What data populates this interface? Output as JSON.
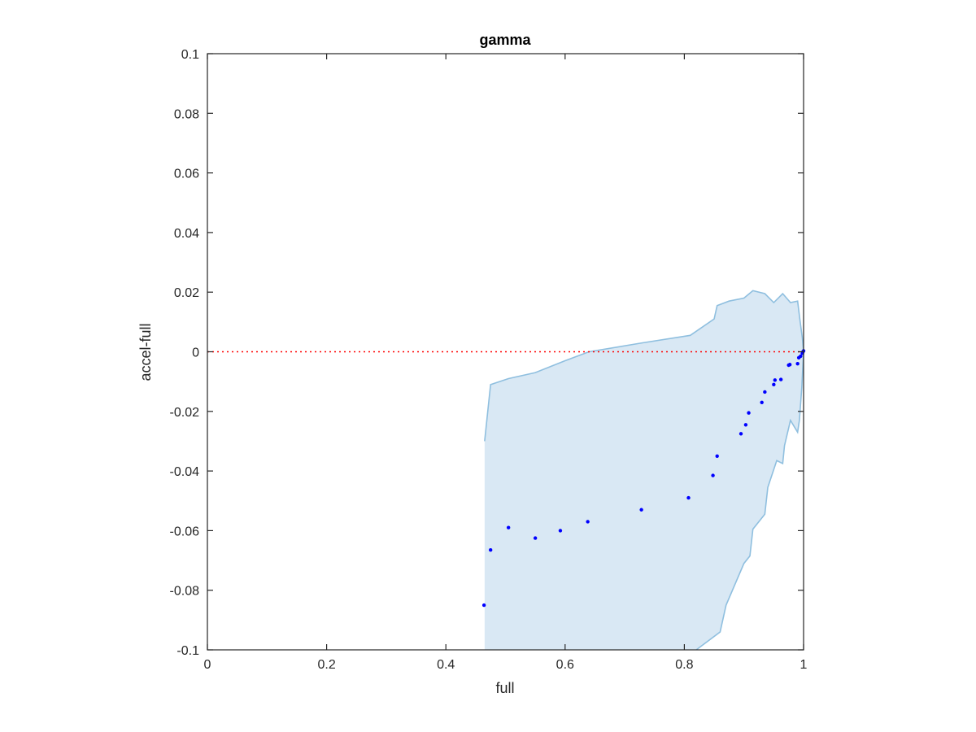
{
  "chart_data": {
    "type": "scatter",
    "title": "gamma",
    "xlabel": "full",
    "ylabel": "accel-full",
    "xlim": [
      0,
      1
    ],
    "ylim": [
      -0.1,
      0.1
    ],
    "xticks": [
      0,
      0.2,
      0.4,
      0.6,
      0.8,
      1
    ],
    "xtick_labels": [
      "0",
      "0.2",
      "0.4",
      "0.6",
      "0.8",
      "1"
    ],
    "yticks": [
      -0.1,
      -0.08,
      -0.06,
      -0.04,
      -0.02,
      0,
      0.02,
      0.04,
      0.06,
      0.08,
      0.1
    ],
    "ytick_labels": [
      "-0.1",
      "-0.08",
      "-0.06",
      "-0.04",
      "-0.02",
      "0",
      "0.02",
      "0.04",
      "0.06",
      "0.08",
      "0.1"
    ],
    "grid": false,
    "reference_line": {
      "y": 0,
      "style": "dotted",
      "color": "#ff0000"
    },
    "colors": {
      "points": "#0000ff",
      "band_fill": "#d9e8f4",
      "band_edge": "#8fbfdf",
      "axes": "#262626"
    },
    "band_upper": [
      [
        0.465,
        -0.03
      ],
      [
        0.475,
        -0.011
      ],
      [
        0.505,
        -0.009
      ],
      [
        0.55,
        -0.007
      ],
      [
        0.6,
        -0.003
      ],
      [
        0.64,
        0.0
      ],
      [
        0.73,
        0.003
      ],
      [
        0.81,
        0.0055
      ],
      [
        0.85,
        0.011
      ],
      [
        0.855,
        0.0155
      ],
      [
        0.875,
        0.017
      ],
      [
        0.9,
        0.018
      ],
      [
        0.915,
        0.0205
      ],
      [
        0.935,
        0.0195
      ],
      [
        0.95,
        0.0165
      ],
      [
        0.965,
        0.0195
      ],
      [
        0.978,
        0.0165
      ],
      [
        0.99,
        0.017
      ],
      [
        0.994,
        0.0105
      ],
      [
        0.998,
        0.0045
      ],
      [
        1.0,
        0.0
      ]
    ],
    "band_lower": [
      [
        1.0,
        0.0
      ],
      [
        0.997,
        -0.012
      ],
      [
        0.993,
        -0.023
      ],
      [
        0.99,
        -0.027
      ],
      [
        0.978,
        -0.023
      ],
      [
        0.968,
        -0.0315
      ],
      [
        0.965,
        -0.0375
      ],
      [
        0.955,
        -0.0365
      ],
      [
        0.94,
        -0.0455
      ],
      [
        0.935,
        -0.0545
      ],
      [
        0.915,
        -0.0595
      ],
      [
        0.91,
        -0.0685
      ],
      [
        0.9,
        -0.071
      ],
      [
        0.87,
        -0.085
      ],
      [
        0.86,
        -0.094
      ],
      [
        0.82,
        -0.1
      ]
    ],
    "points": [
      [
        0.464,
        -0.085
      ],
      [
        0.475,
        -0.0665
      ],
      [
        0.505,
        -0.059
      ],
      [
        0.55,
        -0.0625
      ],
      [
        0.592,
        -0.06
      ],
      [
        0.638,
        -0.057
      ],
      [
        0.728,
        -0.053
      ],
      [
        0.807,
        -0.049
      ],
      [
        0.848,
        -0.0415
      ],
      [
        0.855,
        -0.035
      ],
      [
        0.895,
        -0.0275
      ],
      [
        0.903,
        -0.0245
      ],
      [
        0.908,
        -0.0205
      ],
      [
        0.93,
        -0.017
      ],
      [
        0.935,
        -0.0135
      ],
      [
        0.95,
        -0.011
      ],
      [
        0.952,
        -0.0095
      ],
      [
        0.962,
        -0.0093
      ],
      [
        0.975,
        -0.0045
      ],
      [
        0.977,
        -0.0043
      ],
      [
        0.99,
        -0.004
      ],
      [
        0.992,
        -0.002
      ],
      [
        0.995,
        -0.0015
      ],
      [
        0.998,
        -0.0005
      ],
      [
        0.999,
        0.0
      ],
      [
        1.0,
        0.0003
      ]
    ]
  }
}
